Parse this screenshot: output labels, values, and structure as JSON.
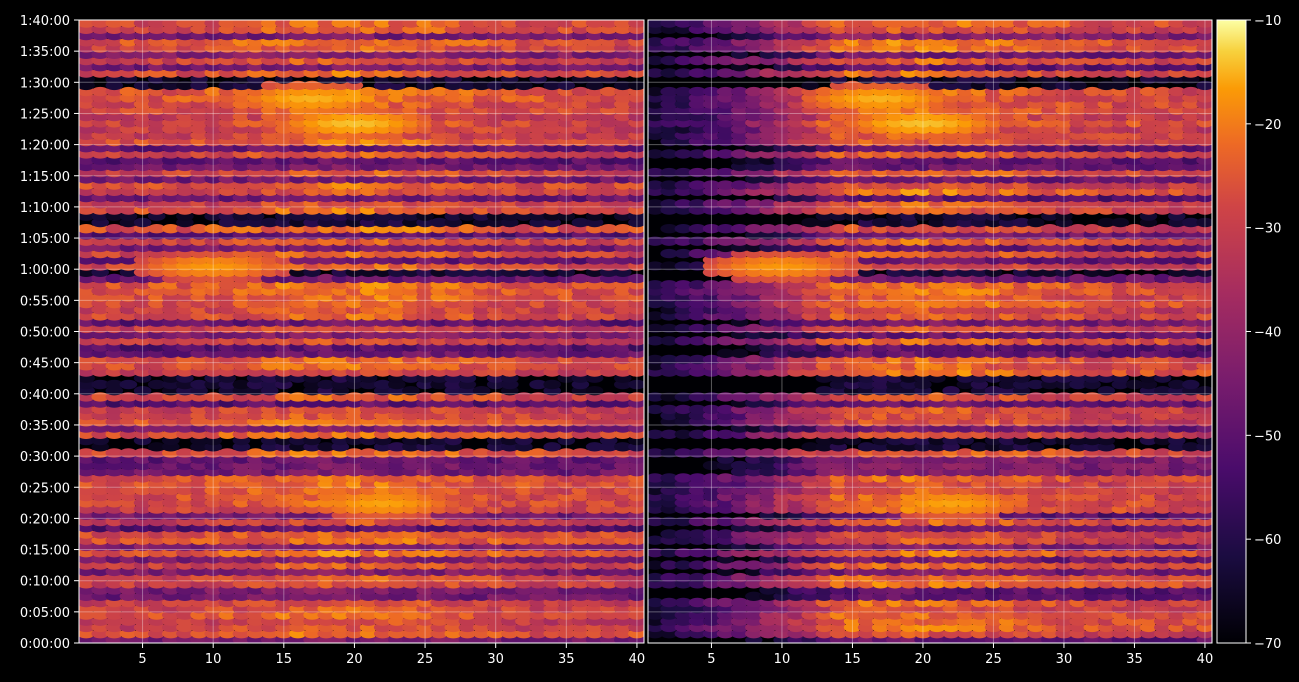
{
  "chart_data": {
    "type": "heatmap",
    "title": "",
    "colormap": "inferno",
    "background": "#000000",
    "ylabel": "",
    "xlabel": "",
    "y_tick_labels": [
      "0:00:00",
      "0:05:00",
      "0:10:00",
      "0:15:00",
      "0:20:00",
      "0:25:00",
      "0:30:00",
      "0:35:00",
      "0:40:00",
      "0:45:00",
      "0:50:00",
      "0:55:00",
      "1:00:00",
      "1:05:00",
      "1:10:00",
      "1:15:00",
      "1:20:00",
      "1:25:00",
      "1:30:00",
      "1:35:00",
      "1:40:00"
    ],
    "y_range_seconds": [
      0,
      6000
    ],
    "grid": true,
    "panels": [
      {
        "x_range": [
          1,
          40
        ],
        "x_ticks": [
          5,
          10,
          15,
          20,
          25,
          30,
          35,
          40
        ],
        "x_tick_labels": [
          "5",
          "10",
          "15",
          "20",
          "25",
          "30",
          "35",
          "40"
        ]
      },
      {
        "x_range": [
          1,
          40
        ],
        "x_ticks": [
          5,
          10,
          15,
          20,
          25,
          30,
          35,
          40
        ],
        "x_tick_labels": [
          "5",
          "10",
          "15",
          "20",
          "25",
          "30",
          "35",
          "40"
        ]
      }
    ],
    "colorbar": {
      "range": [
        -70,
        -10
      ],
      "ticks": [
        -10,
        -20,
        -30,
        -40,
        -50,
        -60,
        -70
      ],
      "tick_labels": [
        "−10",
        "−20",
        "−30",
        "−40",
        "−50",
        "−60",
        "−70"
      ]
    },
    "bright_rows_minutes": [
      1,
      2,
      3,
      4,
      5,
      6,
      9,
      10,
      12,
      14,
      16,
      17,
      19,
      21,
      22,
      23,
      24,
      25,
      26,
      30,
      33,
      35,
      36,
      37,
      39,
      43,
      44,
      45,
      48,
      50,
      52,
      53,
      54,
      55,
      56,
      57,
      60,
      62,
      64,
      66,
      69,
      70,
      72,
      73,
      75,
      78,
      80,
      81,
      82,
      83,
      84,
      85,
      86,
      87,
      88,
      91,
      93,
      95,
      96,
      98,
      99
    ],
    "quiet_rows_minutes": [
      31,
      32,
      40,
      41,
      42,
      59,
      67,
      68,
      89,
      90
    ],
    "hot_spots": [
      {
        "x": 20,
        "minutes": 83,
        "value": -14
      },
      {
        "x": 22,
        "minutes": 22,
        "value": -16
      },
      {
        "x": 10,
        "minutes": 60,
        "value": -17
      },
      {
        "x": 17,
        "minutes": 87,
        "value": -15
      }
    ],
    "right_panel_dark_onset_note": ""
  }
}
